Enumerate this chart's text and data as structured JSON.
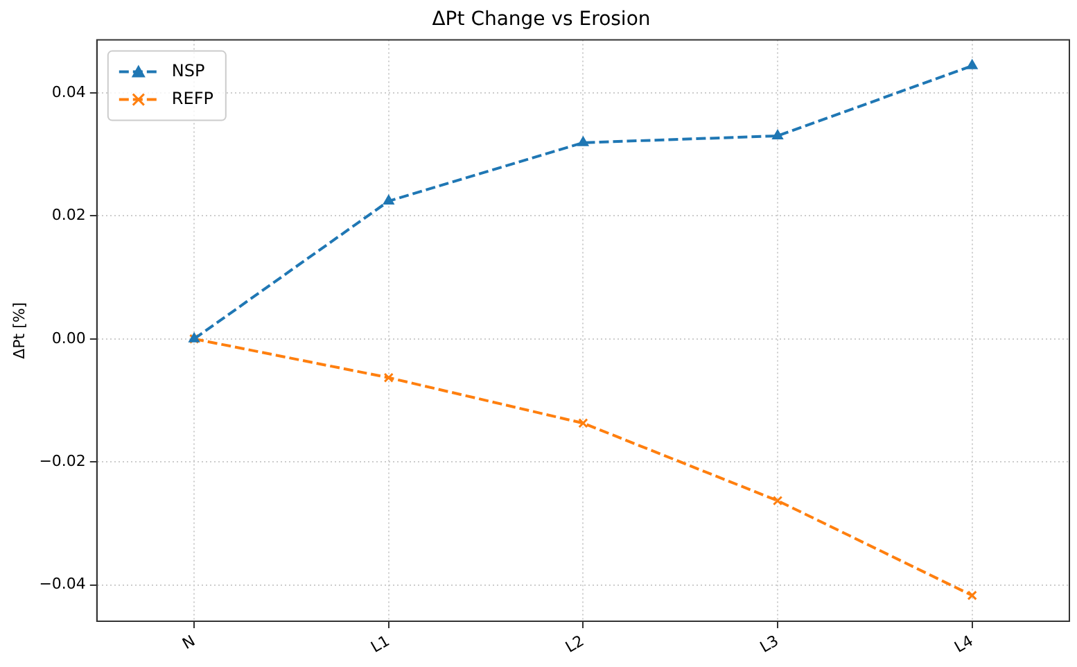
{
  "chart_data": {
    "type": "line",
    "title": "ΔPt Change vs Erosion",
    "ylabel": "ΔPt [%]",
    "categories": [
      "N",
      "L1",
      "L2",
      "L3",
      "L4"
    ],
    "ylim": [
      -0.0459,
      0.0486
    ],
    "yticks": [
      {
        "value": -0.04,
        "label": "−0.04"
      },
      {
        "value": -0.02,
        "label": "−0.02"
      },
      {
        "value": 0,
        "label": "0.00"
      },
      {
        "value": 0.02,
        "label": "0.02"
      },
      {
        "value": 0.04,
        "label": "0.04"
      }
    ],
    "series": [
      {
        "name": "NSP",
        "color": "#1f77b4",
        "marker": "triangle",
        "values": [
          0,
          0.0224,
          0.0319,
          0.033,
          0.0444
        ]
      },
      {
        "name": "REFP",
        "color": "#ff7f0e",
        "marker": "cross",
        "values": [
          0,
          -0.0063,
          -0.0137,
          -0.0263,
          -0.0417
        ]
      }
    ],
    "line_style": "dashed",
    "grid": true,
    "legend": "top left"
  }
}
